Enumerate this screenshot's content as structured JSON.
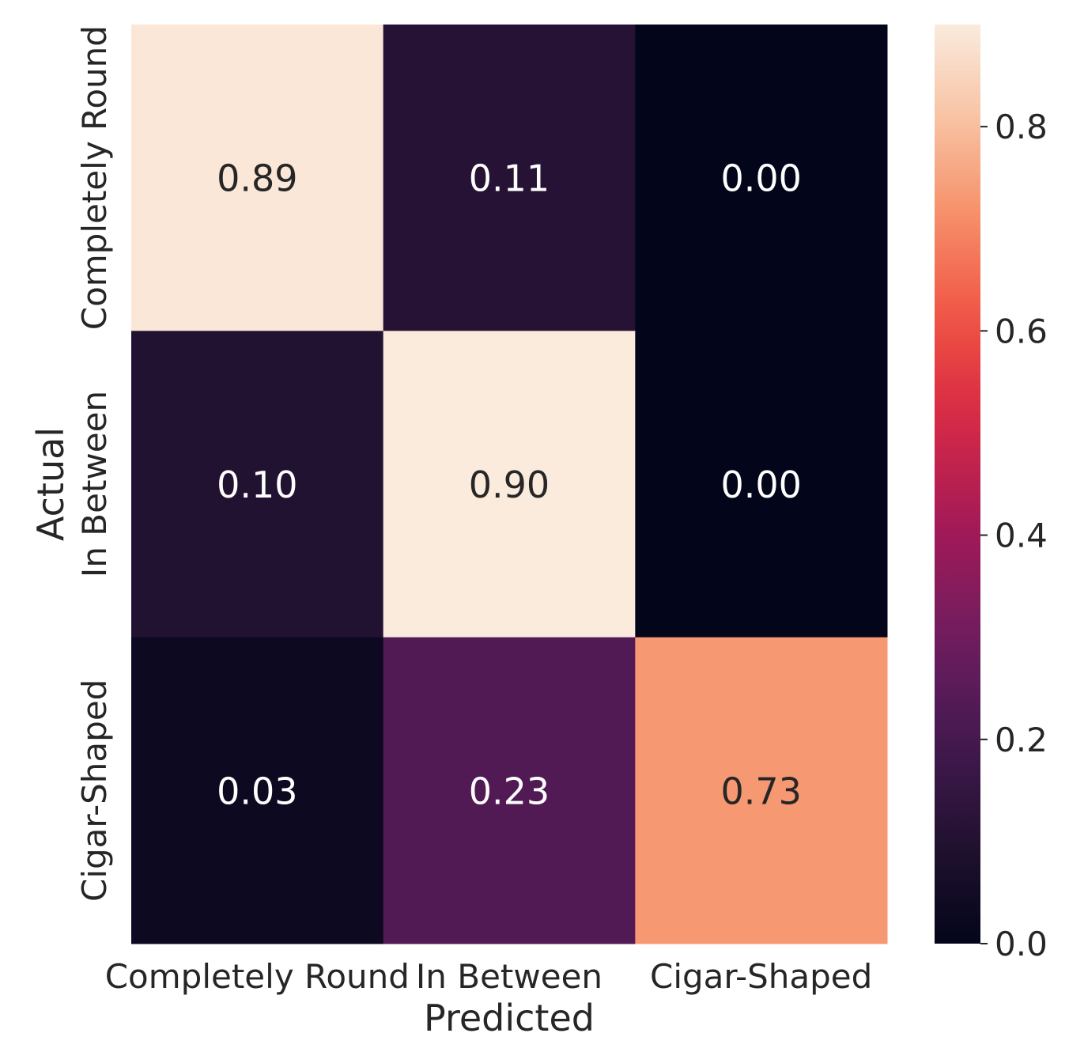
{
  "chart_data": {
    "type": "heatmap",
    "xlabel": "Predicted",
    "ylabel": "Actual",
    "x_categories": [
      "Completely Round",
      "In Between",
      "Cigar-Shaped"
    ],
    "y_categories": [
      "Completely Round",
      "In Between",
      "Cigar-Shaped"
    ],
    "values": [
      [
        0.89,
        0.11,
        0.0
      ],
      [
        0.1,
        0.9,
        0.0
      ],
      [
        0.03,
        0.23,
        0.73
      ]
    ],
    "cell_labels": [
      [
        "0.89",
        "0.11",
        "0.00"
      ],
      [
        "0.10",
        "0.90",
        "0.00"
      ],
      [
        "0.03",
        "0.23",
        "0.73"
      ]
    ],
    "colormap": "rocket",
    "colorbar": {
      "vmin": 0.0,
      "vmax": 0.9,
      "ticks": [
        0.0,
        0.2,
        0.4,
        0.6,
        0.8
      ],
      "tick_labels": [
        "0.0",
        "0.2",
        "0.4",
        "0.6",
        "0.8"
      ]
    },
    "colors": {
      "low": "#03051a",
      "high": "#faebdd",
      "annotation_light": "#ffffff",
      "annotation_dark": "#262626",
      "text": "#262626"
    }
  }
}
